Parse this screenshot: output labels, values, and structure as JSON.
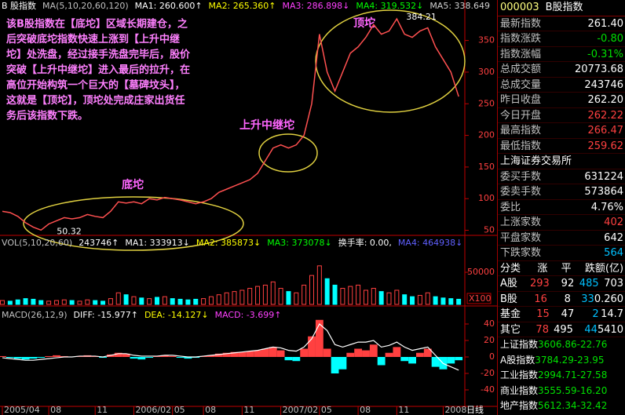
{
  "header": {
    "price": [
      {
        "text": "B 股指数",
        "color": "#ffffff"
      },
      {
        "text": "MA(5,10,20,60,120)",
        "color": "#c0c0c0"
      },
      {
        "text": "MA1: 260.600↑",
        "color": "#ffffff"
      },
      {
        "text": "MA2: 265.360↑",
        "color": "#ffff00"
      },
      {
        "text": "MA3: 286.898↓",
        "color": "#ff40ff"
      },
      {
        "text": "MA4: 319.532↓",
        "color": "#00ff00"
      },
      {
        "text": "MA5: 338.649",
        "color": "#d0d0d0"
      }
    ],
    "volume": [
      {
        "text": "VOL(5,10,20,60)",
        "color": "#c0c0c0"
      },
      {
        "text": "243746↑",
        "color": "#ffffff"
      },
      {
        "text": "MA1: 333913↓",
        "color": "#ffffff"
      },
      {
        "text": "MA2: 385873↓",
        "color": "#ffff00"
      },
      {
        "text": "MA3: 373078↓",
        "color": "#00ff00"
      },
      {
        "text": "换手率: 0.00,",
        "color": "#ffffff"
      },
      {
        "text": "MA4: 464938↓",
        "color": "#6060ff"
      }
    ],
    "macd": [
      {
        "text": "MACD(26,12,9)",
        "color": "#c0c0c0"
      },
      {
        "text": "DIFF: -15.977↑",
        "color": "#ffffff"
      },
      {
        "text": "DEA: -14.127↓",
        "color": "#ffff00"
      },
      {
        "text": "MACD: -3.699↑",
        "color": "#ff40ff"
      }
    ]
  },
  "annotation": {
    "lines": [
      "该B股指数在【底坨】区域长期建仓，之",
      "后突破底坨指数快速上涨到【上升中继",
      "坨】处洗盘，经过接手洗盘完毕后，股价",
      "突破【上升中继坨】进入最后的拉升，在",
      "高位开始构筑一个巨大的【墓碑坟头】，",
      "这就是【顶坨】，顶坨处完成庄家出货任",
      "务后该指数下跌。"
    ],
    "zones": [
      "底坨",
      "上升中继坨",
      "顶坨"
    ]
  },
  "chart_data": [
    {
      "type": "line",
      "color": "#ff5050",
      "categories": [
        "2005/04",
        null,
        null,
        null,
        null,
        null,
        "08",
        null,
        null,
        null,
        null,
        null,
        "11",
        null,
        null,
        null,
        null,
        "2006/02",
        null,
        null,
        null,
        null,
        "05",
        null,
        null,
        null,
        "08",
        null,
        null,
        null,
        null,
        "11",
        null,
        null,
        null,
        null,
        "2007/02",
        null,
        null,
        null,
        null,
        "05",
        null,
        null,
        null,
        null,
        "08",
        null,
        null,
        null,
        null,
        "11",
        null,
        null,
        null,
        null,
        null,
        "2008",
        null,
        null
      ],
      "values": [
        80,
        78,
        72,
        62,
        55,
        50.32,
        60,
        65,
        70,
        68,
        70,
        75,
        72,
        70,
        80,
        95,
        93,
        95,
        92,
        100,
        98,
        102,
        100,
        98,
        95,
        92,
        95,
        100,
        110,
        115,
        120,
        125,
        130,
        140,
        160,
        180,
        185,
        180,
        185,
        200,
        250,
        360,
        300,
        270,
        300,
        330,
        340,
        355,
        375,
        360,
        365,
        384.21,
        360,
        355,
        365,
        370,
        340,
        320,
        300,
        261.4
      ],
      "ylim": [
        42,
        414
      ],
      "yticks": [
        50,
        100,
        150,
        200,
        250,
        300,
        350
      ],
      "period": "日线"
    },
    {
      "type": "bar",
      "up_color": "#ff4040",
      "down_color": "#00ffff",
      "unit_label": "X100",
      "values": [
        6000,
        5000,
        7000,
        9000,
        8000,
        6000,
        5000,
        6000,
        7000,
        6000,
        5000,
        7000,
        6000,
        5000,
        9000,
        18000,
        15000,
        12000,
        10000,
        9000,
        11000,
        12000,
        9000,
        8000,
        7000,
        8000,
        9000,
        12000,
        15000,
        18000,
        20000,
        22000,
        25000,
        28000,
        30000,
        35000,
        25000,
        20000,
        18000,
        30000,
        45000,
        60000,
        40000,
        30000,
        25000,
        28000,
        30000,
        22000,
        25000,
        20000,
        18000,
        22000,
        15000,
        12000,
        14000,
        18000,
        12000,
        10000,
        9000,
        8000
      ],
      "ylim": [
        0,
        105000
      ],
      "yticks": [
        50000
      ]
    },
    {
      "type": "macd",
      "up_color": "#ff4040",
      "down_color": "#00ffff",
      "line_color": "#ffffff",
      "values": [
        1,
        -1,
        -2,
        -3,
        -2,
        -1,
        1,
        2,
        1,
        0,
        1,
        2,
        1,
        -1,
        3,
        5,
        4,
        -2,
        -3,
        -1,
        1,
        2,
        1,
        -1,
        -2,
        -1,
        1,
        2,
        4,
        5,
        6,
        6,
        7,
        8,
        10,
        12,
        8,
        -4,
        -5,
        10,
        25,
        45,
        10,
        -20,
        -15,
        5,
        10,
        8,
        15,
        -10,
        5,
        12,
        -5,
        -8,
        5,
        10,
        -12,
        -15,
        -8,
        -4
      ],
      "diff": [
        -1,
        -2,
        -3,
        -4,
        -4,
        -3,
        -2,
        -1,
        0,
        0,
        1,
        1,
        1,
        0,
        2,
        4,
        4,
        2,
        1,
        1,
        1,
        2,
        2,
        1,
        0,
        0,
        1,
        2,
        3,
        4,
        5,
        6,
        7,
        8,
        10,
        12,
        11,
        8,
        7,
        12,
        22,
        40,
        32,
        15,
        12,
        15,
        18,
        18,
        20,
        12,
        14,
        18,
        12,
        8,
        10,
        12,
        2,
        -8,
        -12,
        -15.977
      ],
      "ylim": [
        -60,
        60
      ],
      "yticks": [
        40,
        20,
        0,
        -20,
        -40
      ]
    }
  ],
  "panel": {
    "code": "000003",
    "name": "B股指数",
    "quote": [
      {
        "label": "最新指数",
        "value": "261.40",
        "color": "#ffffff"
      },
      {
        "label": "指数涨跌",
        "value": "-0.80",
        "color": "#00e000"
      },
      {
        "label": "指数涨幅",
        "value": "-0.31%",
        "color": "#00e000"
      },
      {
        "label": "总成交额",
        "value": "20773.68",
        "color": "#ffffff"
      },
      {
        "label": "总成交量",
        "value": "243746",
        "color": "#ffffff"
      },
      {
        "label": "昨日收盘",
        "value": "262.20",
        "color": "#ffffff"
      },
      {
        "label": "今日开盘",
        "value": "262.22",
        "color": "#ff4040"
      },
      {
        "label": "最高指数",
        "value": "266.47",
        "color": "#ff4040"
      },
      {
        "label": "最低指数",
        "value": "259.62",
        "color": "#ff4040"
      }
    ],
    "exchange": "上海证券交易所",
    "orders": [
      {
        "label": "委买手数",
        "value": "631224",
        "color": "#ffffff"
      },
      {
        "label": "委卖手数",
        "value": "573864",
        "color": "#ffffff"
      },
      {
        "label": "委比",
        "value": "4.76%",
        "color": "#ffffff"
      },
      {
        "label": "上涨家数",
        "value": "402",
        "color": "#ff4040"
      },
      {
        "label": "平盘家数",
        "value": "642",
        "color": "#ffffff"
      },
      {
        "label": "下跌家数",
        "value": "564",
        "color": "#00c0ff"
      }
    ],
    "table": {
      "header": [
        "分类",
        "涨",
        "平",
        "跌",
        "额(亿)"
      ],
      "rows": [
        [
          "A股",
          "293",
          "92",
          "485",
          "703"
        ],
        [
          "B股",
          "16",
          "8",
          "33",
          "0.260"
        ],
        [
          "基金",
          "15",
          "47",
          "2",
          "14.7"
        ],
        [
          "其它",
          "78",
          "495",
          "44",
          "5410"
        ]
      ]
    },
    "indices": [
      {
        "name": "上证指数",
        "value": "3606.86",
        "change": "-22.76"
      },
      {
        "name": "A股指数",
        "value": "3784.29",
        "change": "-23.95"
      },
      {
        "name": "工业指数",
        "value": "2994.71",
        "change": "-27.58"
      },
      {
        "name": "商业指数",
        "value": "3555.59",
        "change": "-16.20"
      },
      {
        "name": "地产指数",
        "value": "5612.34",
        "change": "-32.42"
      }
    ]
  }
}
